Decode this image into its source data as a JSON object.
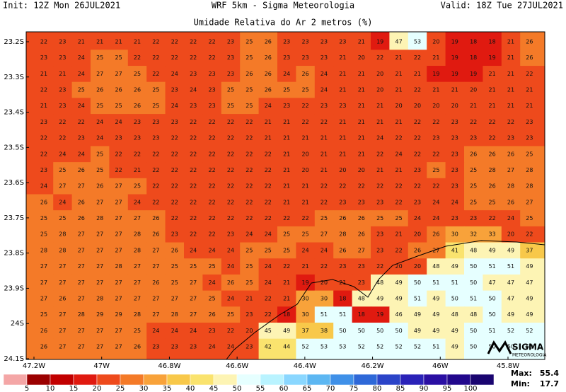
{
  "header": {
    "init": "Init: 12Z Mon 26JUL2021",
    "model": "WRF 5km - Sigma Meteorologia",
    "valid": "Valid: 18Z Tue 27JUL2021",
    "title": "Umidade Relativa do Ar 2 metros (%)"
  },
  "map": {
    "lat_labels": [
      "23.2S",
      "23.3S",
      "23.4S",
      "23.5S",
      "23.6S",
      "23.7S",
      "23.8S",
      "23.9S",
      "24S",
      "24.1S"
    ],
    "lon_labels": [
      "47.2W",
      "47W",
      "46.8W",
      "46.6W",
      "46.4W",
      "46.2W",
      "46W",
      "45.8W"
    ],
    "grid": [
      [
        22,
        23,
        21,
        21,
        21,
        21,
        22,
        22,
        22,
        22,
        23,
        25,
        26,
        23,
        23,
        23,
        23,
        21,
        19,
        47,
        53,
        20,
        19,
        18,
        18,
        21,
        26
      ],
      [
        23,
        23,
        24,
        25,
        25,
        22,
        22,
        22,
        22,
        22,
        23,
        25,
        26,
        23,
        23,
        23,
        21,
        20,
        22,
        21,
        22,
        21,
        19,
        18,
        19,
        21,
        26
      ],
      [
        21,
        21,
        24,
        27,
        27,
        25,
        22,
        24,
        23,
        23,
        23,
        26,
        26,
        24,
        26,
        24,
        21,
        21,
        20,
        21,
        21,
        19,
        19,
        19,
        21,
        21,
        22
      ],
      [
        22,
        23,
        25,
        26,
        26,
        26,
        25,
        23,
        24,
        23,
        25,
        25,
        26,
        25,
        25,
        24,
        21,
        21,
        20,
        21,
        22,
        21,
        21,
        20,
        21,
        21,
        21
      ],
      [
        21,
        23,
        24,
        25,
        25,
        26,
        25,
        24,
        23,
        23,
        25,
        25,
        24,
        23,
        22,
        23,
        23,
        21,
        21,
        20,
        20,
        20,
        20,
        21,
        21,
        21,
        21
      ],
      [
        23,
        22,
        22,
        24,
        24,
        23,
        23,
        23,
        22,
        22,
        22,
        22,
        21,
        21,
        22,
        22,
        21,
        21,
        21,
        21,
        22,
        22,
        23,
        22,
        22,
        22,
        23
      ],
      [
        22,
        22,
        23,
        24,
        23,
        23,
        23,
        22,
        22,
        22,
        22,
        22,
        21,
        21,
        21,
        21,
        21,
        21,
        24,
        22,
        22,
        23,
        23,
        23,
        22,
        23,
        23
      ],
      [
        22,
        24,
        24,
        25,
        22,
        22,
        22,
        22,
        22,
        22,
        22,
        22,
        22,
        21,
        20,
        21,
        21,
        21,
        22,
        24,
        22,
        22,
        23,
        26,
        26,
        26,
        25
      ],
      [
        23,
        25,
        26,
        25,
        22,
        21,
        22,
        22,
        22,
        22,
        22,
        22,
        22,
        21,
        20,
        21,
        20,
        20,
        21,
        21,
        23,
        25,
        23,
        25,
        28,
        27,
        28
      ],
      [
        24,
        27,
        27,
        26,
        27,
        25,
        22,
        22,
        22,
        22,
        22,
        22,
        22,
        21,
        21,
        22,
        22,
        22,
        22,
        22,
        22,
        22,
        23,
        25,
        26,
        28,
        28
      ],
      [
        26,
        24,
        26,
        27,
        27,
        24,
        22,
        22,
        22,
        22,
        22,
        22,
        22,
        21,
        21,
        22,
        23,
        23,
        23,
        22,
        23,
        24,
        24,
        25,
        25,
        26,
        27
      ],
      [
        25,
        25,
        26,
        28,
        27,
        27,
        26,
        22,
        22,
        22,
        22,
        22,
        22,
        22,
        22,
        25,
        26,
        26,
        25,
        25,
        24,
        24,
        23,
        23,
        22,
        24,
        25
      ],
      [
        25,
        28,
        27,
        27,
        27,
        28,
        26,
        23,
        22,
        22,
        23,
        24,
        24,
        25,
        25,
        27,
        28,
        26,
        23,
        21,
        20,
        26,
        30,
        32,
        33,
        20,
        22
      ],
      [
        28,
        28,
        27,
        27,
        27,
        28,
        27,
        26,
        24,
        24,
        24,
        25,
        25,
        25,
        24,
        24,
        26,
        27,
        23,
        22,
        26,
        27,
        41,
        48,
        49,
        49,
        37
      ],
      [
        27,
        27,
        27,
        27,
        28,
        27,
        27,
        25,
        25,
        25,
        24,
        25,
        24,
        22,
        21,
        22,
        23,
        23,
        22,
        20,
        20,
        48,
        49,
        50,
        51,
        51,
        49
      ],
      [
        27,
        27,
        27,
        27,
        27,
        27,
        26,
        25,
        27,
        24,
        26,
        25,
        24,
        21,
        19,
        20,
        21,
        23,
        48,
        49,
        50,
        51,
        51,
        50,
        47,
        47,
        47
      ],
      [
        27,
        26,
        27,
        28,
        27,
        27,
        27,
        27,
        27,
        25,
        24,
        21,
        22,
        21,
        30,
        30,
        18,
        48,
        49,
        49,
        51,
        49,
        50,
        51,
        50,
        47,
        49
      ],
      [
        25,
        27,
        28,
        29,
        29,
        28,
        27,
        28,
        27,
        26,
        25,
        23,
        22,
        18,
        30,
        51,
        51,
        18,
        19,
        46,
        49,
        49,
        48,
        48,
        50,
        49,
        49
      ],
      [
        26,
        27,
        27,
        27,
        27,
        25,
        24,
        24,
        24,
        23,
        22,
        20,
        45,
        49,
        37,
        38,
        50,
        50,
        50,
        50,
        49,
        49,
        49,
        50,
        51,
        52,
        52
      ],
      [
        26,
        27,
        27,
        27,
        27,
        26,
        23,
        23,
        23,
        24,
        24,
        23,
        42,
        44,
        52,
        53,
        53,
        52,
        52,
        52,
        52,
        51,
        49,
        50,
        50,
        50,
        50
      ]
    ]
  },
  "colorbar": {
    "levels": [
      5,
      10,
      15,
      20,
      25,
      30,
      35,
      40,
      45,
      50,
      55,
      60,
      65,
      70,
      75,
      80,
      85,
      90,
      95,
      100
    ],
    "colors": [
      "#f4a6a6",
      "#9b0000",
      "#c20000",
      "#e01a10",
      "#ee4a1c",
      "#f47a28",
      "#f8a23a",
      "#f8c84a",
      "#fae36e",
      "#fdf4b4",
      "#e6ffff",
      "#b9f3ff",
      "#8ad7ff",
      "#5db7f2",
      "#3f90e8",
      "#2e68d8",
      "#2b44c8",
      "#2a22b8",
      "#2a0fa3",
      "#22088c",
      "#1a0570"
    ]
  },
  "stats": {
    "max_label": "Max:",
    "max": 55.4,
    "min_label": "Min:",
    "min": 17.7
  },
  "logo": {
    "name": "SIGMA",
    "sub": "METEOROLOGIA"
  }
}
